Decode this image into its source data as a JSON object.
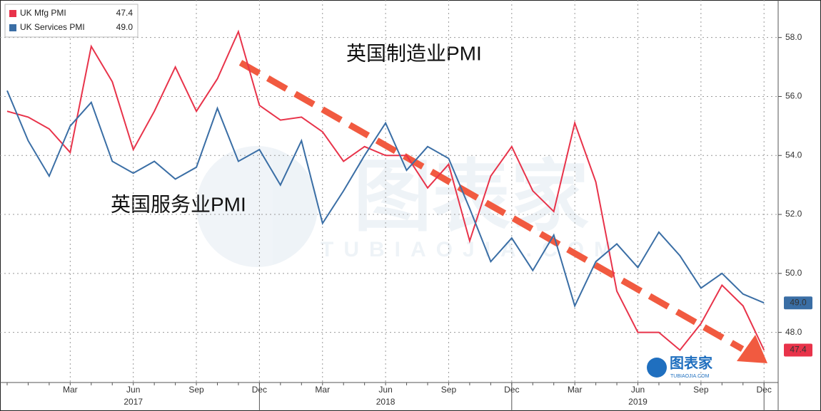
{
  "chart_data": {
    "type": "line",
    "categories": [
      null,
      null,
      null,
      "Mar",
      null,
      null,
      "Jun",
      null,
      null,
      "Sep",
      null,
      null,
      "Dec",
      null,
      null,
      "Mar",
      null,
      null,
      "Jun",
      null,
      null,
      "Sep",
      null,
      null,
      "Dec",
      null,
      null,
      "Mar",
      null,
      null,
      "Jun",
      null,
      null,
      "Sep",
      null,
      null,
      "Dec"
    ],
    "year_labels": [
      "2017",
      "2018",
      "2019"
    ],
    "series": [
      {
        "name": "UK Mfg PMI",
        "color": "#e8334a",
        "last_value_label": "47.4",
        "values": [
          55.5,
          55.3,
          54.9,
          54.1,
          57.7,
          56.5,
          54.2,
          55.5,
          57.0,
          55.5,
          56.6,
          58.2,
          55.7,
          55.2,
          55.3,
          54.8,
          53.8,
          54.3,
          54.0,
          54.0,
          52.9,
          53.7,
          51.1,
          53.3,
          54.3,
          52.8,
          52.1,
          55.1,
          53.1,
          49.4,
          48.0,
          48.0,
          47.4,
          48.3,
          49.6,
          48.9,
          47.4
        ]
      },
      {
        "name": "UK Services PMI",
        "color": "#3a6ea5",
        "last_value_label": "49.0",
        "values": [
          56.2,
          54.5,
          53.3,
          55.0,
          55.8,
          53.8,
          53.4,
          53.8,
          53.2,
          53.6,
          55.6,
          53.8,
          54.2,
          53.0,
          54.5,
          51.7,
          52.8,
          54.0,
          55.1,
          53.5,
          54.3,
          53.9,
          52.2,
          50.4,
          51.2,
          50.1,
          51.3,
          48.9,
          50.4,
          51.0,
          50.2,
          51.4,
          50.6,
          49.5,
          50.0,
          49.3,
          49.0
        ]
      }
    ],
    "ylim": [
      46.3,
      59.2
    ],
    "yticks": [
      {
        "value": 48,
        "label": "48.0"
      },
      {
        "value": 50,
        "label": "50.0"
      },
      {
        "value": 52,
        "label": "52.0"
      },
      {
        "value": 54,
        "label": "54.0"
      },
      {
        "value": 56,
        "label": "56.0"
      },
      {
        "value": 58,
        "label": "58.0"
      }
    ],
    "grid": true,
    "annotations": [
      "英国制造业PMI",
      "英国服务业PMI"
    ],
    "watermark": {
      "name": "图表家",
      "site": "TUBIAOJIA.COM"
    }
  }
}
